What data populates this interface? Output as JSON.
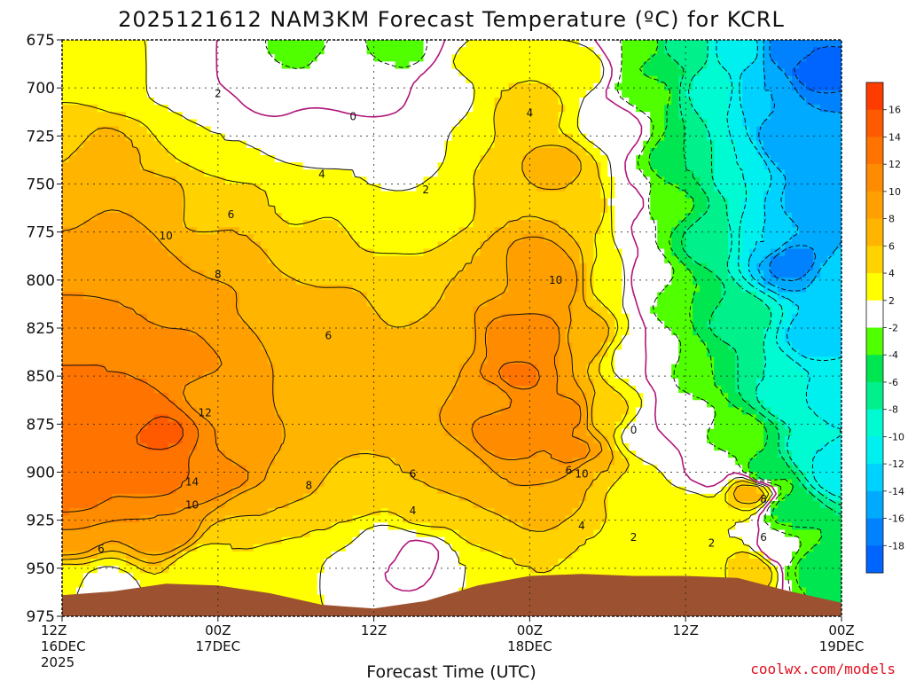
{
  "title": "2025121612 NAM3KM Forecast Temperature (ºC) for KCRL",
  "credit": "coolwx.com/models",
  "colors": {
    "terrain": "#9c5230",
    "background": "#ffffff",
    "freezing_line": "#b0157a",
    "grid": "#888888"
  },
  "chart_data": {
    "type": "contour",
    "title": "2025121612 NAM3KM Forecast Temperature (ºC) for KCRL",
    "xlabel": "Forecast Time (UTC)",
    "ylabel": "",
    "x": [
      {
        "line1": "12Z",
        "line2": "16DEC",
        "line3": "2025"
      },
      {
        "line1": "00Z",
        "line2": "17DEC",
        "line3": ""
      },
      {
        "line1": "12Z",
        "line2": "",
        "line3": ""
      },
      {
        "line1": "00Z",
        "line2": "18DEC",
        "line3": ""
      },
      {
        "line1": "12Z",
        "line2": "",
        "line3": ""
      },
      {
        "line1": "00Z",
        "line2": "19DEC",
        "line3": ""
      }
    ],
    "x_hours": [
      0,
      12,
      24,
      36,
      48,
      60
    ],
    "y_levels_hpa": [
      675,
      700,
      725,
      750,
      775,
      800,
      825,
      850,
      875,
      900,
      925,
      950,
      975
    ],
    "ylim": [
      675,
      975
    ],
    "xlim_hours": [
      0,
      60
    ],
    "grid": true,
    "colorbar": {
      "ticks": [
        16,
        14,
        12,
        10,
        8,
        6,
        4,
        2,
        -2,
        -4,
        -6,
        -8,
        -10,
        -12,
        -14,
        -16,
        -18
      ],
      "bands": [
        {
          "min": 16,
          "max": 18,
          "color": "#ff3c00"
        },
        {
          "min": 14,
          "max": 16,
          "color": "#ff5a00"
        },
        {
          "min": 12,
          "max": 14,
          "color": "#ff7400"
        },
        {
          "min": 10,
          "max": 12,
          "color": "#ff8c00"
        },
        {
          "min": 8,
          "max": 10,
          "color": "#ffa000"
        },
        {
          "min": 6,
          "max": 8,
          "color": "#ffb400"
        },
        {
          "min": 4,
          "max": 6,
          "color": "#ffd200"
        },
        {
          "min": 2,
          "max": 4,
          "color": "#ffff00"
        },
        {
          "min": -2,
          "max": 2,
          "color": "#ffffff"
        },
        {
          "min": -4,
          "max": -2,
          "color": "#50ff00"
        },
        {
          "min": -6,
          "max": -4,
          "color": "#00e650"
        },
        {
          "min": -8,
          "max": -6,
          "color": "#00f08c"
        },
        {
          "min": -10,
          "max": -8,
          "color": "#00fad2"
        },
        {
          "min": -12,
          "max": -10,
          "color": "#00f0f0"
        },
        {
          "min": -14,
          "max": -12,
          "color": "#00d2ff"
        },
        {
          "min": -16,
          "max": -14,
          "color": "#00aaff"
        },
        {
          "min": -18,
          "max": -16,
          "color": "#0082ff"
        },
        {
          "min": -20,
          "max": -18,
          "color": "#0064ff"
        }
      ]
    },
    "field": [
      {
        "t": 0,
        "p": 690,
        "v": 3
      },
      {
        "t": 0,
        "p": 725,
        "v": 5
      },
      {
        "t": 0,
        "p": 760,
        "v": 7
      },
      {
        "t": 0,
        "p": 790,
        "v": 9
      },
      {
        "t": 0,
        "p": 825,
        "v": 11
      },
      {
        "t": 0,
        "p": 860,
        "v": 12.5
      },
      {
        "t": 0,
        "p": 885,
        "v": 13.5
      },
      {
        "t": 0,
        "p": 910,
        "v": 13
      },
      {
        "t": 0,
        "p": 935,
        "v": 10
      },
      {
        "t": 0,
        "p": 955,
        "v": 3
      },
      {
        "t": 1,
        "p": 675,
        "v": 2.5
      },
      {
        "t": 1,
        "p": 885,
        "v": 14
      },
      {
        "t": 2,
        "p": 690,
        "v": 4
      },
      {
        "t": 3,
        "p": 660,
        "v": 1.5
      },
      {
        "t": 3,
        "p": 735,
        "v": 7.5
      },
      {
        "t": 3,
        "p": 840,
        "v": 12
      },
      {
        "t": 3,
        "p": 960,
        "v": 1
      },
      {
        "t": 4,
        "p": 780,
        "v": 9.5
      },
      {
        "t": 5,
        "p": 695,
        "v": 2.5
      },
      {
        "t": 5,
        "p": 870,
        "v": 13
      },
      {
        "t": 6,
        "p": 735,
        "v": 6
      },
      {
        "t": 6,
        "p": 805,
        "v": 10
      },
      {
        "t": 7,
        "p": 900,
        "v": 13
      },
      {
        "t": 7.5,
        "p": 880,
        "v": 14.5
      },
      {
        "t": 8,
        "p": 695,
        "v": 1.5
      },
      {
        "t": 8,
        "p": 760,
        "v": 7
      },
      {
        "t": 8,
        "p": 930,
        "v": 10
      },
      {
        "t": 9,
        "p": 725,
        "v": 3
      },
      {
        "t": 10,
        "p": 690,
        "v": 1
      },
      {
        "t": 10,
        "p": 810,
        "v": 9.5
      },
      {
        "t": 10,
        "p": 840,
        "v": 11
      },
      {
        "t": 10.5,
        "p": 900,
        "v": 12
      },
      {
        "t": 11,
        "p": 710,
        "v": 1
      },
      {
        "t": 11,
        "p": 760,
        "v": 4.5
      },
      {
        "t": 11,
        "p": 950,
        "v": 2
      },
      {
        "t": 12,
        "p": 790,
        "v": 7.5
      },
      {
        "t": 12,
        "p": 860,
        "v": 9
      },
      {
        "t": 12.5,
        "p": 900,
        "v": 11
      },
      {
        "t": 13,
        "p": 730,
        "v": 2
      },
      {
        "t": 13,
        "p": 830,
        "v": 9
      },
      {
        "t": 13,
        "p": 940,
        "v": 4
      },
      {
        "t": 14,
        "p": 690,
        "v": -1.5
      },
      {
        "t": 14,
        "p": 770,
        "v": 6
      },
      {
        "t": 14,
        "p": 890,
        "v": 9
      },
      {
        "t": 15,
        "p": 920,
        "v": 6
      },
      {
        "t": 16,
        "p": 700,
        "v": -1
      },
      {
        "t": 16,
        "p": 760,
        "v": 4
      },
      {
        "t": 16,
        "p": 820,
        "v": 7
      },
      {
        "t": 16,
        "p": 880,
        "v": 8
      },
      {
        "t": 17,
        "p": 950,
        "v": 3
      },
      {
        "t": 18,
        "p": 680,
        "v": -2.5
      },
      {
        "t": 18,
        "p": 760,
        "v": 3.5
      },
      {
        "t": 18,
        "p": 820,
        "v": 6
      },
      {
        "t": 18,
        "p": 900,
        "v": 7
      },
      {
        "t": 19,
        "p": 725,
        "v": 0.5
      },
      {
        "t": 20,
        "p": 780,
        "v": 4.5
      },
      {
        "t": 20,
        "p": 860,
        "v": 7
      },
      {
        "t": 20,
        "p": 930,
        "v": 4
      },
      {
        "t": 21,
        "p": 690,
        "v": -1.5
      },
      {
        "t": 22,
        "p": 740,
        "v": 2
      },
      {
        "t": 22,
        "p": 820,
        "v": 6.5
      },
      {
        "t": 22,
        "p": 910,
        "v": 5
      },
      {
        "t": 23,
        "p": 950,
        "v": 0
      },
      {
        "t": 24,
        "p": 700,
        "v": -0.5
      },
      {
        "t": 24,
        "p": 770,
        "v": 3.5
      },
      {
        "t": 24,
        "p": 860,
        "v": 7
      },
      {
        "t": 25,
        "p": 940,
        "v": 1
      },
      {
        "t": 26,
        "p": 680,
        "v": -2.5
      },
      {
        "t": 26,
        "p": 740,
        "v": 1
      },
      {
        "t": 26,
        "p": 810,
        "v": 5.5
      },
      {
        "t": 26,
        "p": 900,
        "v": 6
      },
      {
        "t": 27,
        "p": 945,
        "v": -1.5
      },
      {
        "t": 28,
        "p": 770,
        "v": 3
      },
      {
        "t": 28,
        "p": 850,
        "v": 7
      },
      {
        "t": 28,
        "p": 920,
        "v": 4.5
      },
      {
        "t": 30,
        "p": 700,
        "v": 1
      },
      {
        "t": 30,
        "p": 760,
        "v": 3
      },
      {
        "t": 30,
        "p": 830,
        "v": 6.5
      },
      {
        "t": 30,
        "p": 900,
        "v": 7
      },
      {
        "t": 31,
        "p": 950,
        "v": 2
      },
      {
        "t": 32,
        "p": 690,
        "v": 2.5
      },
      {
        "t": 32,
        "p": 790,
        "v": 6
      },
      {
        "t": 33,
        "p": 860,
        "v": 9.5
      },
      {
        "t": 33,
        "p": 930,
        "v": 5
      },
      {
        "t": 34,
        "p": 700,
        "v": 4
      },
      {
        "t": 34,
        "p": 760,
        "v": 6
      },
      {
        "t": 34,
        "p": 830,
        "v": 10.5
      },
      {
        "t": 34.5,
        "p": 880,
        "v": 11.5
      },
      {
        "t": 35,
        "p": 850,
        "v": 12.5
      },
      {
        "t": 35,
        "p": 915,
        "v": 8
      },
      {
        "t": 36,
        "p": 710,
        "v": 5
      },
      {
        "t": 36,
        "p": 790,
        "v": 9
      },
      {
        "t": 36,
        "p": 950,
        "v": 4
      },
      {
        "t": 37,
        "p": 830,
        "v": 11
      },
      {
        "t": 37,
        "p": 890,
        "v": 10
      },
      {
        "t": 38,
        "p": 740,
        "v": 6.5
      },
      {
        "t": 38,
        "p": 800,
        "v": 9.5
      },
      {
        "t": 38,
        "p": 920,
        "v": 7
      },
      {
        "t": 39,
        "p": 870,
        "v": 10.5
      },
      {
        "t": 39.5,
        "p": 890,
        "v": 10.5
      },
      {
        "t": 40,
        "p": 690,
        "v": 3
      },
      {
        "t": 40,
        "p": 760,
        "v": 6
      },
      {
        "t": 40,
        "p": 830,
        "v": 7.5
      },
      {
        "t": 40,
        "p": 930,
        "v": 4
      },
      {
        "t": 41,
        "p": 900,
        "v": 6
      },
      {
        "t": 42,
        "p": 720,
        "v": 1.5
      },
      {
        "t": 42,
        "p": 800,
        "v": 3.5
      },
      {
        "t": 42,
        "p": 870,
        "v": 4.5
      },
      {
        "t": 43,
        "p": 950,
        "v": 2
      },
      {
        "t": 44,
        "p": 680,
        "v": -2
      },
      {
        "t": 44,
        "p": 760,
        "v": 0.5
      },
      {
        "t": 44,
        "p": 840,
        "v": 1.5
      },
      {
        "t": 44,
        "p": 910,
        "v": 2.5
      },
      {
        "t": 45,
        "p": 700,
        "v": -3
      },
      {
        "t": 45,
        "p": 800,
        "v": -1
      },
      {
        "t": 45,
        "p": 880,
        "v": 0
      },
      {
        "t": 46,
        "p": 690,
        "v": -5
      },
      {
        "t": 46,
        "p": 760,
        "v": -3
      },
      {
        "t": 46,
        "p": 840,
        "v": -2
      },
      {
        "t": 46,
        "p": 930,
        "v": 2.5
      },
      {
        "t": 48,
        "p": 680,
        "v": -7
      },
      {
        "t": 48,
        "p": 740,
        "v": -6
      },
      {
        "t": 48,
        "p": 810,
        "v": -4
      },
      {
        "t": 48,
        "p": 870,
        "v": -1
      },
      {
        "t": 48,
        "p": 920,
        "v": 3
      },
      {
        "t": 49,
        "p": 950,
        "v": 2
      },
      {
        "t": 50,
        "p": 700,
        "v": -9
      },
      {
        "t": 50,
        "p": 780,
        "v": -7
      },
      {
        "t": 50,
        "p": 850,
        "v": -4
      },
      {
        "t": 50,
        "p": 900,
        "v": -0.5
      },
      {
        "t": 51,
        "p": 930,
        "v": 2
      },
      {
        "t": 52,
        "p": 680,
        "v": -11
      },
      {
        "t": 52,
        "p": 740,
        "v": -10
      },
      {
        "t": 52,
        "p": 820,
        "v": -7
      },
      {
        "t": 52,
        "p": 880,
        "v": -3
      },
      {
        "t": 53,
        "p": 910,
        "v": 7
      },
      {
        "t": 53,
        "p": 950,
        "v": 6
      },
      {
        "t": 54,
        "p": 700,
        "v": -14
      },
      {
        "t": 54,
        "p": 780,
        "v": -12
      },
      {
        "t": 54,
        "p": 850,
        "v": -8
      },
      {
        "t": 54,
        "p": 900,
        "v": -5
      },
      {
        "t": 55,
        "p": 940,
        "v": -1
      },
      {
        "t": 56,
        "p": 680,
        "v": -17
      },
      {
        "t": 56,
        "p": 730,
        "v": -16
      },
      {
        "t": 56,
        "p": 790,
        "v": -17
      },
      {
        "t": 56,
        "p": 860,
        "v": -10
      },
      {
        "t": 56,
        "p": 920,
        "v": -5
      },
      {
        "t": 58,
        "p": 690,
        "v": -19
      },
      {
        "t": 58,
        "p": 760,
        "v": -15
      },
      {
        "t": 58,
        "p": 830,
        "v": -13
      },
      {
        "t": 58,
        "p": 890,
        "v": -10
      },
      {
        "t": 58,
        "p": 950,
        "v": -5
      },
      {
        "t": 60,
        "p": 680,
        "v": -18
      },
      {
        "t": 60,
        "p": 740,
        "v": -16
      },
      {
        "t": 60,
        "p": 800,
        "v": -13
      },
      {
        "t": 60,
        "p": 860,
        "v": -11
      },
      {
        "t": 60,
        "p": 900,
        "v": -12
      },
      {
        "t": 60,
        "p": 950,
        "v": -6
      }
    ],
    "terrain_surface_hpa": [
      {
        "t": 0,
        "p": 964
      },
      {
        "t": 4,
        "p": 962
      },
      {
        "t": 8,
        "p": 958
      },
      {
        "t": 12,
        "p": 959
      },
      {
        "t": 16,
        "p": 963
      },
      {
        "t": 20,
        "p": 969
      },
      {
        "t": 24,
        "p": 971
      },
      {
        "t": 28,
        "p": 967
      },
      {
        "t": 32,
        "p": 959
      },
      {
        "t": 36,
        "p": 954
      },
      {
        "t": 40,
        "p": 953
      },
      {
        "t": 44,
        "p": 954
      },
      {
        "t": 48,
        "p": 954
      },
      {
        "t": 52,
        "p": 955
      },
      {
        "t": 56,
        "p": 962
      },
      {
        "t": 60,
        "p": 968
      }
    ],
    "contour_labels": [
      {
        "text": "2",
        "t": 12.0,
        "p": 703
      },
      {
        "text": "0",
        "t": 22.4,
        "p": 715
      },
      {
        "text": "4",
        "t": 36.0,
        "p": 713
      },
      {
        "text": "4",
        "t": 20.0,
        "p": 745
      },
      {
        "text": "2",
        "t": 28.0,
        "p": 753
      },
      {
        "text": "6",
        "t": 13.0,
        "p": 766
      },
      {
        "text": "10",
        "t": 8.0,
        "p": 777
      },
      {
        "text": "8",
        "t": 12.0,
        "p": 797
      },
      {
        "text": "10",
        "t": 38.0,
        "p": 800
      },
      {
        "text": "6",
        "t": 20.5,
        "p": 829
      },
      {
        "text": "12",
        "t": 11.0,
        "p": 869
      },
      {
        "text": "0",
        "t": 44.0,
        "p": 878
      },
      {
        "text": "6",
        "t": 27.0,
        "p": 901
      },
      {
        "text": "6",
        "t": 39.0,
        "p": 899
      },
      {
        "text": "10",
        "t": 40.0,
        "p": 901
      },
      {
        "text": "14",
        "t": 10.0,
        "p": 905
      },
      {
        "text": "8",
        "t": 19.0,
        "p": 907
      },
      {
        "text": "8",
        "t": 54.0,
        "p": 914
      },
      {
        "text": "4",
        "t": 27.0,
        "p": 920
      },
      {
        "text": "10",
        "t": 10.0,
        "p": 917
      },
      {
        "text": "4",
        "t": 40.0,
        "p": 928
      },
      {
        "text": "2",
        "t": 44.0,
        "p": 934
      },
      {
        "text": "6",
        "t": 54.0,
        "p": 934
      },
      {
        "text": "2",
        "t": 50.0,
        "p": 937
      },
      {
        "text": "6",
        "t": 3.0,
        "p": 940
      }
    ]
  }
}
